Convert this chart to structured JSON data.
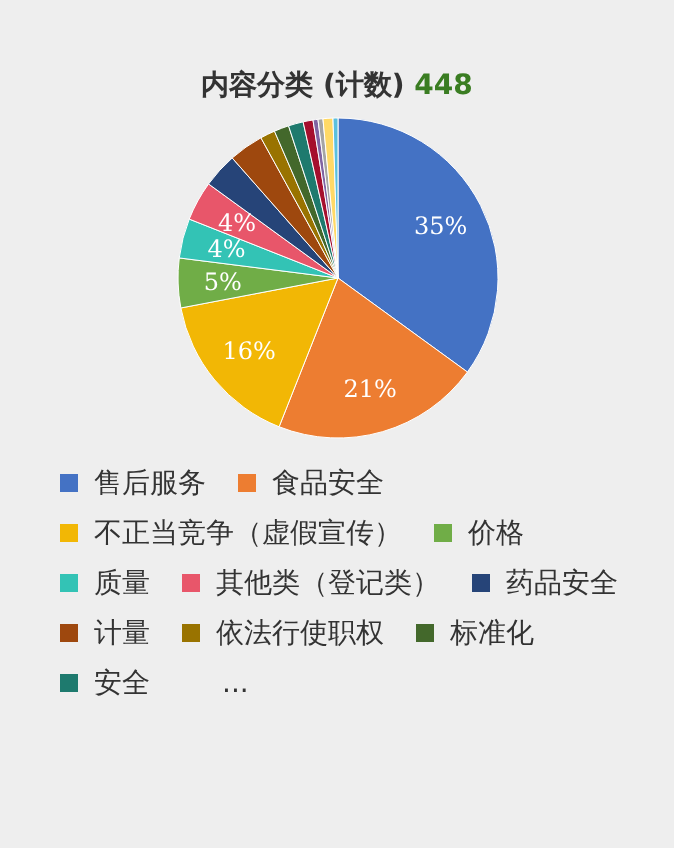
{
  "chart_data": {
    "type": "pie",
    "title": "内容分类 (计数)",
    "subtitle": "448",
    "categories": [
      "售后服务",
      "食品安全",
      "不正当竞争（虚假宣传）",
      "价格",
      "质量",
      "其他类（登记类）",
      "药品安全",
      "计量",
      "依法行使职权",
      "标准化",
      "安全",
      null,
      null,
      null,
      null,
      null
    ],
    "values": [
      35,
      21,
      16,
      5,
      4,
      4,
      3.5,
      3.5,
      1.5,
      1.5,
      1.5,
      1,
      0.5,
      0.5,
      1,
      0.5
    ],
    "value_labels": [
      "35%",
      "21%",
      "16%",
      "5%",
      "4%",
      "4%",
      null,
      null,
      null,
      null,
      null,
      null,
      null,
      null,
      null,
      null
    ],
    "colors": [
      "#4472c4",
      "#ed7d31",
      "#f2b705",
      "#70ad47",
      "#33c3b5",
      "#e8566a",
      "#264478",
      "#9e480e",
      "#997300",
      "#43682b",
      "#1e7a6e",
      "#a50f2d",
      "#8064a2",
      "#a5a5a5",
      "#ffd966",
      "#5bc0de"
    ],
    "legend": "bottom",
    "annotations": [
      "..."
    ]
  }
}
